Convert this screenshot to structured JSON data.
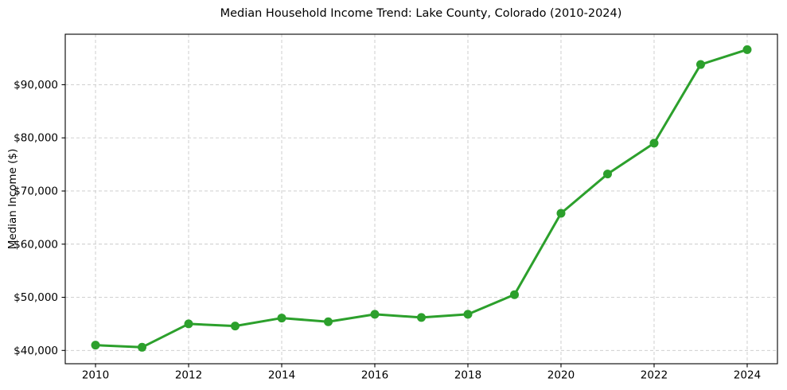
{
  "chart_data": {
    "type": "line",
    "title": "Median Household Income Trend: Lake County, Colorado (2010-2024)",
    "xlabel": "",
    "ylabel": "Median Income ($)",
    "x": [
      2010,
      2011,
      2012,
      2013,
      2014,
      2015,
      2016,
      2017,
      2018,
      2019,
      2020,
      2021,
      2022,
      2023,
      2024
    ],
    "values": [
      41000,
      40600,
      45000,
      44600,
      46100,
      45400,
      46800,
      46200,
      46800,
      50500,
      65800,
      73200,
      79000,
      93800,
      96600
    ],
    "xticks": [
      2010,
      2012,
      2014,
      2016,
      2018,
      2020,
      2022,
      2024
    ],
    "xtick_labels": [
      "2010",
      "2012",
      "2014",
      "2016",
      "2018",
      "2020",
      "2022",
      "2024"
    ],
    "yticks": [
      40000,
      50000,
      60000,
      70000,
      80000,
      90000
    ],
    "ytick_labels": [
      "$40,000",
      "$50,000",
      "$60,000",
      "$70,000",
      "$80,000",
      "$90,000"
    ],
    "xlim": [
      2009.35,
      2024.65
    ],
    "ylim": [
      37500,
      99500
    ],
    "grid": true,
    "legend": "none",
    "line_color": "#2ca02c",
    "marker": "circle",
    "marker_color": "#2ca02c",
    "grid_color": "#c9c9c9",
    "spine_color": "#000000",
    "background_color": "#ffffff"
  }
}
